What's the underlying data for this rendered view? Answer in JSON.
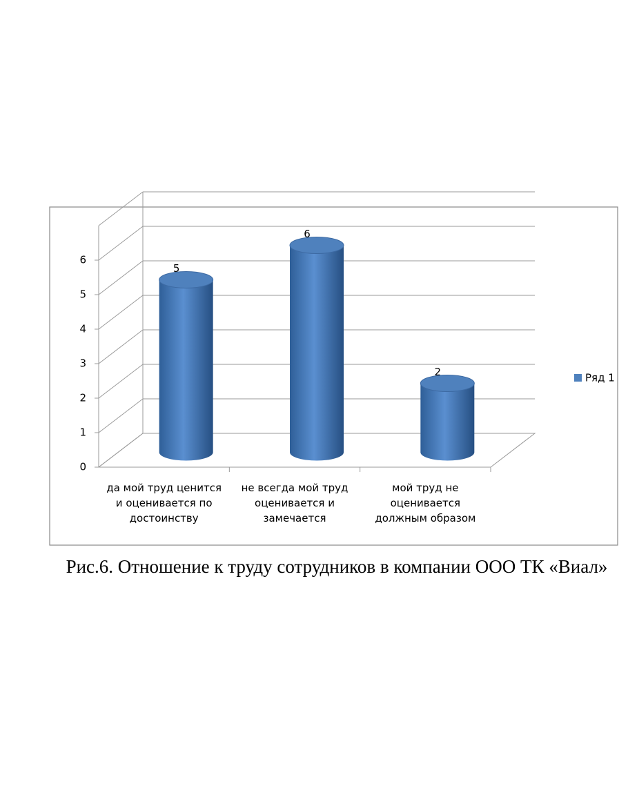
{
  "chart_data": {
    "type": "bar3d",
    "caption": "Рис.6. Отношение к труду сотрудников в компании ООО ТК «Виал»",
    "categories": [
      "да мой труд ценится\nи оценивается по\nдостоинству",
      "не всегда мой труд\nоценивается и\nзамечается",
      "мой труд не\nоценивается\nдолжным образом"
    ],
    "series": [
      {
        "name": "Ряд 1",
        "color": "#4f81bd",
        "values": [
          5,
          6,
          2
        ]
      }
    ],
    "ylim": [
      0,
      7
    ],
    "yticks": [
      0,
      1,
      2,
      3,
      4,
      5,
      6
    ],
    "grid": true,
    "legend": "right"
  }
}
